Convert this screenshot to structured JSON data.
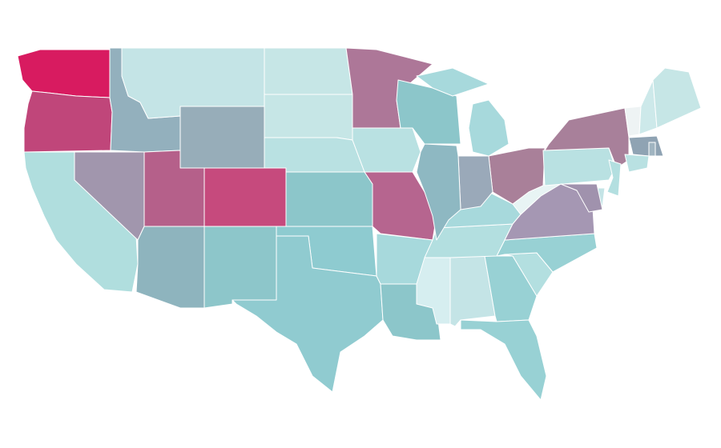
{
  "map": {
    "background": "#ffffff",
    "border_color": "#ffffff",
    "regions": [
      {
        "color": "#d81b60"
      },
      {
        "color": "#c0467a"
      },
      {
        "color": "#b0dede"
      },
      {
        "color": "#a196ad"
      },
      {
        "color": "#93b0bd"
      },
      {
        "color": "#c4e4e6"
      },
      {
        "color": "#97adb9"
      },
      {
        "color": "#b5608a"
      },
      {
        "color": "#c64a7d"
      },
      {
        "color": "#8eb4be"
      },
      {
        "color": "#8dc6ca"
      },
      {
        "color": "#c6e6e6"
      },
      {
        "color": "#c6e6e6"
      },
      {
        "color": "#b9e1e2"
      },
      {
        "color": "#8cc6ca"
      },
      {
        "color": "#8ecbd0"
      },
      {
        "color": "#90cbd0"
      },
      {
        "color": "#ad7798"
      },
      {
        "color": "#b9e1e2"
      },
      {
        "color": "#b6658f"
      },
      {
        "color": "#a7d9dc"
      },
      {
        "color": "#8cc6ca"
      },
      {
        "color": "#d6eef0"
      },
      {
        "color": "#c4e4e6"
      },
      {
        "color": "#98d1d4"
      },
      {
        "color": "#98d1d4"
      },
      {
        "color": "#b3dfe0"
      },
      {
        "color": "#98d1d4"
      },
      {
        "color": "#b3dfe0"
      },
      {
        "color": "#a7d9dc"
      },
      {
        "color": "#a597b3"
      },
      {
        "color": "#e8f4f4"
      },
      {
        "color": "#a98099"
      },
      {
        "color": "#9aa9b9"
      },
      {
        "color": "#8eb8c2"
      },
      {
        "color": "#8cc6ca"
      },
      {
        "color": "#a7d9dc"
      },
      {
        "color": "#b9e1e2"
      },
      {
        "color": "#a8809a"
      },
      {
        "color": "#eef3f4"
      },
      {
        "color": "#cde9ea"
      },
      {
        "color": "#c6e6e6"
      },
      {
        "color": "#8fa3b3"
      },
      {
        "color": "#a0b4c0"
      },
      {
        "color": "#b9e1e2"
      },
      {
        "color": "#b3dfe0"
      },
      {
        "color": "#c4e4e6"
      },
      {
        "color": "#a092ad"
      }
    ]
  }
}
